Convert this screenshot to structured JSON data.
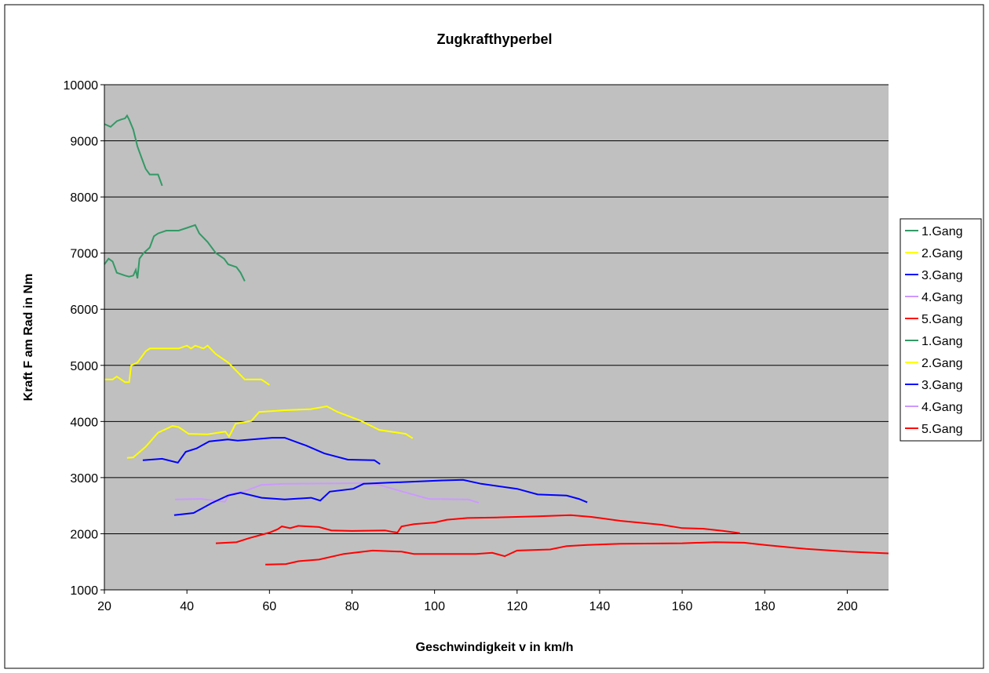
{
  "chart_data": {
    "type": "line",
    "title": "Zugkrafthyperbel",
    "xlabel": "Geschwindigkeit v in km/h",
    "ylabel": "Kraft F am Rad in Nm",
    "xlim": [
      20,
      210
    ],
    "ylim": [
      1000,
      10000
    ],
    "xticks": [
      20,
      40,
      60,
      80,
      100,
      120,
      140,
      160,
      180,
      200
    ],
    "yticks": [
      1000,
      2000,
      3000,
      4000,
      5000,
      6000,
      7000,
      8000,
      9000,
      10000
    ],
    "grid": "horizontal",
    "legend_position": "right",
    "plot_background": "#C0C0C0",
    "series": [
      {
        "name": "1.Gang",
        "color": "#339966",
        "points": [
          [
            20,
            9300
          ],
          [
            21.5,
            9250
          ],
          [
            23,
            9350
          ],
          [
            24,
            9380
          ],
          [
            25,
            9400
          ],
          [
            25.5,
            9450
          ],
          [
            26,
            9380
          ],
          [
            27,
            9200
          ],
          [
            28,
            8900
          ],
          [
            29,
            8700
          ],
          [
            30,
            8500
          ],
          [
            31,
            8400
          ],
          [
            33,
            8400
          ],
          [
            34,
            8200
          ]
        ]
      },
      {
        "name": "2.Gang",
        "color": "#FFFF00",
        "points": [
          [
            20,
            4750
          ],
          [
            22,
            4750
          ],
          [
            23,
            4800
          ],
          [
            25,
            4700
          ],
          [
            26,
            4700
          ],
          [
            26.5,
            5000
          ],
          [
            28,
            5050
          ],
          [
            30,
            5250
          ],
          [
            31,
            5300
          ],
          [
            33,
            5300
          ],
          [
            36,
            5300
          ],
          [
            38,
            5300
          ],
          [
            40,
            5350
          ],
          [
            41,
            5300
          ],
          [
            42,
            5350
          ],
          [
            44,
            5300
          ],
          [
            45,
            5350
          ],
          [
            47,
            5200
          ],
          [
            50,
            5050
          ],
          [
            52,
            4900
          ],
          [
            54,
            4750
          ],
          [
            58,
            4750
          ],
          [
            59,
            4700
          ],
          [
            60,
            4650
          ]
        ]
      },
      {
        "name": "3.Gang",
        "color": "#0000FF",
        "points": [
          [
            29.3,
            3310
          ],
          [
            34,
            3335
          ],
          [
            37.8,
            3265
          ],
          [
            39.7,
            3460
          ],
          [
            42.3,
            3520
          ],
          [
            45.4,
            3645
          ],
          [
            49.9,
            3680
          ],
          [
            52.3,
            3660
          ],
          [
            60.6,
            3710
          ],
          [
            63.7,
            3710
          ],
          [
            68.9,
            3570
          ],
          [
            73.3,
            3430
          ],
          [
            79,
            3320
          ],
          [
            85.4,
            3310
          ],
          [
            86.8,
            3240
          ]
        ]
      },
      {
        "name": "4.Gang",
        "color": "#CC99FF",
        "points": [
          [
            37.1,
            2610
          ],
          [
            43.5,
            2620
          ],
          [
            49.2,
            2570
          ],
          [
            50.4,
            2710
          ],
          [
            53.7,
            2750
          ],
          [
            58,
            2870
          ],
          [
            63.7,
            2890
          ],
          [
            82.8,
            2900
          ],
          [
            86.6,
            2870
          ],
          [
            92.3,
            2750
          ],
          [
            98.7,
            2620
          ],
          [
            108.2,
            2610
          ],
          [
            110.7,
            2550
          ]
        ]
      },
      {
        "name": "5.Gang",
        "color": "#FF0000",
        "points": [
          [
            47,
            1830
          ],
          [
            52,
            1850
          ],
          [
            55,
            1920
          ],
          [
            60,
            2020
          ],
          [
            62,
            2080
          ],
          [
            63,
            2130
          ],
          [
            65,
            2100
          ],
          [
            67,
            2140
          ],
          [
            72,
            2120
          ],
          [
            75,
            2060
          ],
          [
            80,
            2050
          ],
          [
            88,
            2060
          ],
          [
            90,
            2030
          ],
          [
            91,
            2020
          ],
          [
            92,
            2130
          ],
          [
            95,
            2170
          ],
          [
            100,
            2200
          ],
          [
            103,
            2250
          ],
          [
            108,
            2280
          ],
          [
            115,
            2290
          ],
          [
            125,
            2310
          ],
          [
            133,
            2330
          ],
          [
            138,
            2300
          ],
          [
            145,
            2230
          ],
          [
            155,
            2160
          ],
          [
            160,
            2100
          ],
          [
            165,
            2090
          ],
          [
            170,
            2050
          ],
          [
            174,
            2010
          ]
        ]
      },
      {
        "name": "1.Gang",
        "color": "#339966",
        "points": [
          [
            20,
            6800
          ],
          [
            21,
            6900
          ],
          [
            22,
            6850
          ],
          [
            23,
            6650
          ],
          [
            25,
            6600
          ],
          [
            26,
            6580
          ],
          [
            27,
            6600
          ],
          [
            27.6,
            6700
          ],
          [
            28,
            6550
          ],
          [
            28.5,
            6900
          ],
          [
            29.5,
            7000
          ],
          [
            31,
            7100
          ],
          [
            32,
            7300
          ],
          [
            33,
            7350
          ],
          [
            35,
            7400
          ],
          [
            38,
            7400
          ],
          [
            40,
            7450
          ],
          [
            42,
            7500
          ],
          [
            43,
            7350
          ],
          [
            45,
            7200
          ],
          [
            47,
            7000
          ],
          [
            49,
            6900
          ],
          [
            50,
            6800
          ],
          [
            52,
            6750
          ],
          [
            53,
            6650
          ],
          [
            54,
            6500
          ]
        ]
      },
      {
        "name": "2.Gang",
        "color": "#FFFF00",
        "points": [
          [
            25.5,
            3350
          ],
          [
            27,
            3360
          ],
          [
            30,
            3550
          ],
          [
            33,
            3800
          ],
          [
            36.5,
            3920
          ],
          [
            38,
            3900
          ],
          [
            40.4,
            3780
          ],
          [
            45,
            3770
          ],
          [
            49.3,
            3820
          ],
          [
            50.2,
            3730
          ],
          [
            51.8,
            3960
          ],
          [
            55.6,
            4010
          ],
          [
            57.5,
            4170
          ],
          [
            63.7,
            4200
          ],
          [
            70,
            4220
          ],
          [
            73.9,
            4270
          ],
          [
            76.5,
            4170
          ],
          [
            82.2,
            4010
          ],
          [
            86.6,
            3850
          ],
          [
            93,
            3780
          ],
          [
            94.7,
            3700
          ]
        ]
      },
      {
        "name": "3.Gang",
        "color": "#0000FF",
        "points": [
          [
            36.9,
            2330
          ],
          [
            41.6,
            2370
          ],
          [
            46,
            2545
          ],
          [
            49.9,
            2680
          ],
          [
            53,
            2730
          ],
          [
            58.1,
            2640
          ],
          [
            63.7,
            2610
          ],
          [
            70.1,
            2640
          ],
          [
            72.3,
            2590
          ],
          [
            74.6,
            2750
          ],
          [
            80.3,
            2800
          ],
          [
            82.8,
            2890
          ],
          [
            89.2,
            2910
          ],
          [
            101.8,
            2950
          ],
          [
            106.9,
            2960
          ],
          [
            111.3,
            2890
          ],
          [
            120,
            2800
          ],
          [
            125,
            2700
          ],
          [
            132,
            2680
          ],
          [
            135,
            2620
          ],
          [
            137,
            2560
          ]
        ]
      },
      {
        "name": "4.Gang",
        "color": "#CC99FF",
        "points": []
      },
      {
        "name": "5.Gang",
        "color": "#FF0000",
        "points": [
          [
            59,
            1450
          ],
          [
            64,
            1460
          ],
          [
            67,
            1510
          ],
          [
            72,
            1540
          ],
          [
            78,
            1640
          ],
          [
            85,
            1700
          ],
          [
            92,
            1680
          ],
          [
            95,
            1640
          ],
          [
            110,
            1640
          ],
          [
            114,
            1660
          ],
          [
            117,
            1600
          ],
          [
            120,
            1700
          ],
          [
            128,
            1720
          ],
          [
            132,
            1780
          ],
          [
            137,
            1800
          ],
          [
            145,
            1820
          ],
          [
            160,
            1830
          ],
          [
            168,
            1850
          ],
          [
            175,
            1840
          ],
          [
            180,
            1800
          ],
          [
            190,
            1730
          ],
          [
            200,
            1680
          ],
          [
            210,
            1650
          ]
        ]
      }
    ]
  }
}
